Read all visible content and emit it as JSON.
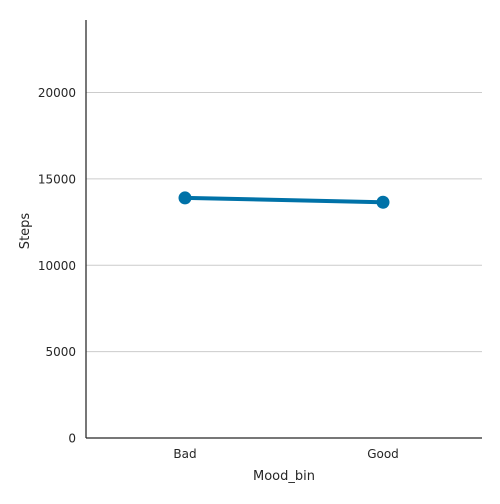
{
  "chart_data": {
    "type": "line",
    "title": "",
    "xlabel": "Mood_bin",
    "ylabel": "Steps",
    "categories": [
      "Bad",
      "Good"
    ],
    "series": [
      {
        "values": [
          13900,
          13650
        ],
        "color": "#0072a8"
      }
    ],
    "ylim": [
      0,
      24200
    ],
    "yticks": [
      0,
      5000,
      10000,
      15000,
      20000
    ],
    "ytick_labels": [
      "0",
      "5000",
      "10000",
      "15000",
      "20000"
    ],
    "grid": {
      "y": true,
      "x": false,
      "color": "#cccccc"
    },
    "legend": "none",
    "markers": true
  }
}
